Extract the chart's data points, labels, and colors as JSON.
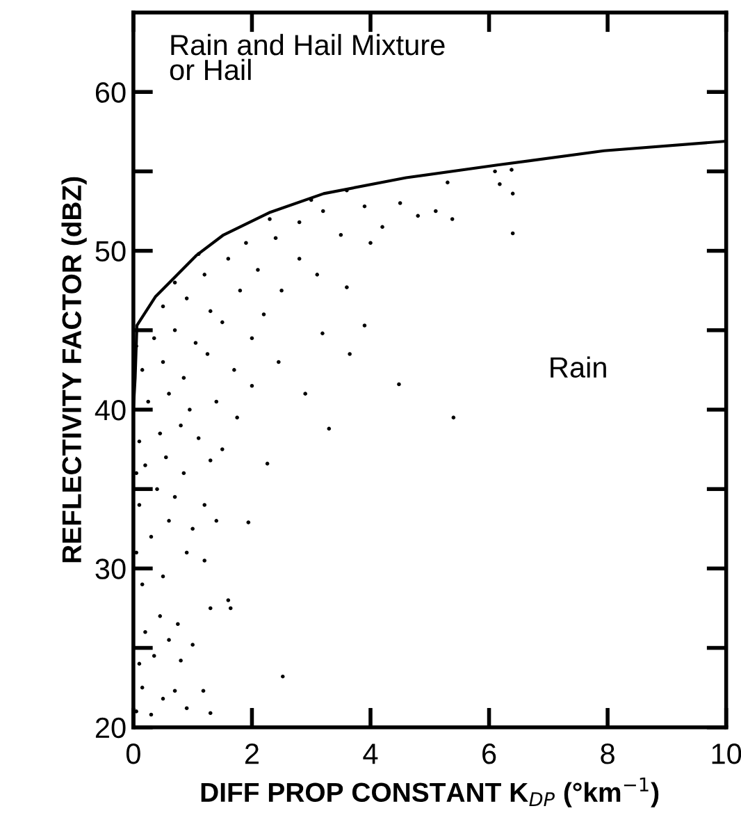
{
  "chart_data": {
    "type": "scatter",
    "xlabel": "DIFF PROP CONSTANT K$_{DP}$ (°km$^{−1}$)",
    "ylabel": "REFLECTIVITY FACTOR (dBZ)",
    "annotations": [
      "Rain and Hail Mixture\nor Hail",
      "Rain"
    ],
    "xlim": [
      0,
      10
    ],
    "xticks": [
      0,
      2,
      4,
      6,
      8,
      10
    ],
    "ylim": [
      20,
      65
    ],
    "yticks": [
      20,
      {
        "value": 25,
        "label": null
      },
      30,
      {
        "value": 35,
        "label": null
      },
      40,
      {
        "value": 45,
        "label": null
      },
      50,
      {
        "value": 55,
        "label": null
      },
      60
    ],
    "grid": false,
    "legend": false,
    "marker": "circle",
    "series": [
      {
        "color": "#000000",
        "x": [
          0.05,
          0.15,
          0.3,
          0.5,
          0.7,
          0.9,
          0.1,
          0.35,
          0.6,
          0.8,
          0.2,
          0.45,
          0.75,
          1.0,
          0.15,
          0.5,
          0.9,
          1.2,
          0.3,
          0.6,
          1.0,
          0.1,
          0.4,
          0.7,
          1.2,
          0.2,
          0.55,
          0.85,
          1.3,
          0.1,
          0.45,
          0.8,
          1.1,
          1.5,
          0.25,
          0.6,
          0.95,
          1.4,
          0.15,
          0.5,
          0.85,
          1.25,
          1.7,
          0.35,
          0.7,
          1.05,
          1.5,
          2.0,
          0.5,
          0.9,
          1.3,
          1.8,
          2.2,
          0.7,
          1.2,
          1.6,
          2.1,
          2.5,
          1.1,
          1.9,
          2.4,
          2.8,
          3.1,
          2.3,
          2.8,
          3.2,
          3.5,
          3.9,
          4.2,
          4.5,
          4.8,
          5.1,
          3.0,
          3.6,
          4.0,
          1.3,
          1.6,
          1.64,
          1.18,
          1.3,
          2.52,
          1.94,
          2.26,
          3.3,
          5.4,
          2.9,
          3.19,
          3.6,
          3.65,
          3.9,
          4.48,
          5.38,
          5.3,
          6.1,
          6.38,
          6.18,
          6.4,
          6.4,
          1.75,
          2.0,
          2.45,
          1.4,
          0.05,
          0.05,
          0.05
        ],
        "values": [
          21,
          22.5,
          20.8,
          21.8,
          22.3,
          21.2,
          24,
          24.5,
          25.5,
          24.2,
          26,
          27,
          26.5,
          25.2,
          29,
          29.5,
          31,
          30.5,
          32,
          33,
          32.5,
          34,
          35,
          34.5,
          34,
          36.5,
          37,
          36,
          36.8,
          38,
          38.5,
          39,
          38.2,
          37.5,
          40.5,
          41,
          40,
          40.5,
          42.5,
          43,
          42,
          43.5,
          42.5,
          44.5,
          45,
          44.2,
          45.5,
          44.5,
          46.5,
          47,
          46.2,
          47.5,
          46,
          48,
          48.5,
          49.5,
          48.8,
          47.5,
          49.8,
          50.5,
          50.8,
          49.5,
          48.5,
          52,
          51.8,
          52.5,
          51,
          52.8,
          51.5,
          53,
          52.2,
          52.5,
          53.2,
          53.8,
          50.5,
          27.5,
          28,
          27.5,
          22.3,
          20.9,
          23.2,
          32.9,
          36.6,
          38.8,
          39.5,
          41,
          44.8,
          47.7,
          43.5,
          45.3,
          41.6,
          52,
          54.3,
          55,
          55.1,
          54.2,
          53.6,
          51.1,
          39.5,
          41.5,
          43,
          33,
          31,
          36,
          44
        ]
      },
      {
        "type": "line",
        "color": "#000000",
        "marker": "none",
        "x": [
          0.0,
          0.03,
          0.06,
          0.37,
          1.06,
          1.52,
          2.29,
          3.21,
          4.6,
          6.14,
          7.94,
          10.0
        ],
        "values": [
          40,
          42,
          45.3,
          47.1,
          49.7,
          51.0,
          52.4,
          53.6,
          54.6,
          55.4,
          56.3,
          56.9
        ]
      }
    ]
  }
}
